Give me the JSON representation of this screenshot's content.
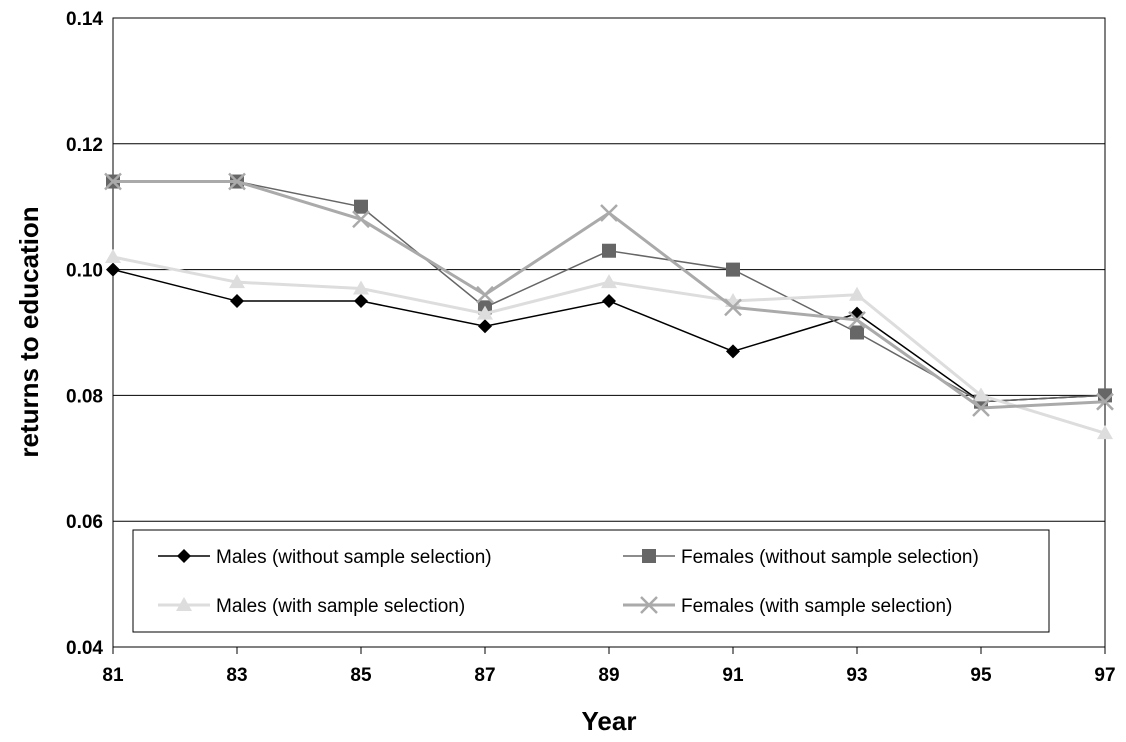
{
  "chart_data": {
    "type": "line",
    "title": "",
    "xlabel": "Year",
    "ylabel": "returns to education",
    "categories": [
      "81",
      "83",
      "85",
      "87",
      "89",
      "91",
      "93",
      "95",
      "97"
    ],
    "ylim": [
      0.04,
      0.14
    ],
    "yticks": [
      "0.04",
      "0.06",
      "0.08",
      "0.10",
      "0.12",
      "0.14"
    ],
    "grid": "horizontal",
    "legend": "bottom-inside",
    "series": [
      {
        "name": "Males (without sample selection)",
        "marker": "diamond",
        "color": "#000000",
        "values": [
          0.1,
          0.095,
          0.095,
          0.091,
          0.095,
          0.087,
          0.093,
          0.079,
          0.08
        ]
      },
      {
        "name": "Females (without sample selection)",
        "marker": "square",
        "color": "#666666",
        "values": [
          0.114,
          0.114,
          0.11,
          0.094,
          0.103,
          0.1,
          0.09,
          0.079,
          0.08
        ]
      },
      {
        "name": "Males (with sample selection)",
        "marker": "triangle",
        "color": "#dddddd",
        "values": [
          0.102,
          0.098,
          0.097,
          0.093,
          0.098,
          0.095,
          0.096,
          0.08,
          0.074
        ]
      },
      {
        "name": "Females (with sample selection)",
        "marker": "x",
        "color": "#aaaaaa",
        "values": [
          0.114,
          0.114,
          0.108,
          0.096,
          0.109,
          0.094,
          0.092,
          0.078,
          0.079
        ]
      }
    ]
  }
}
